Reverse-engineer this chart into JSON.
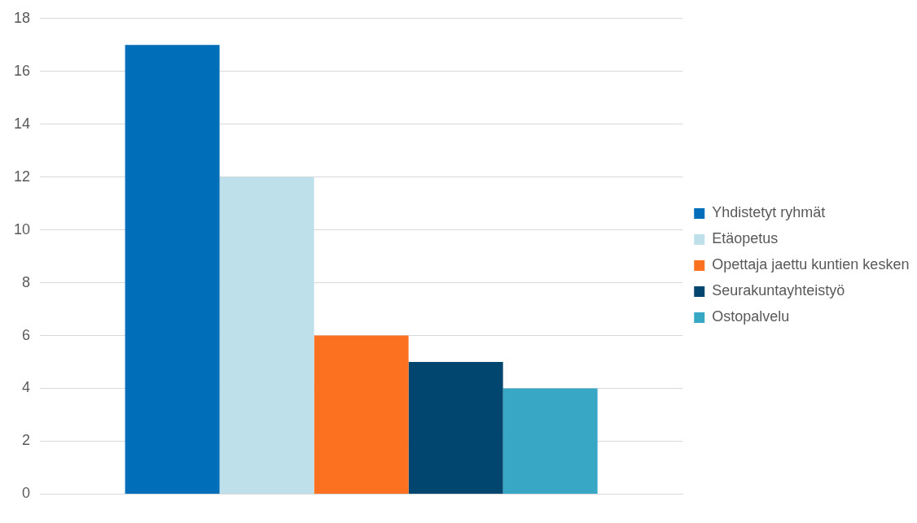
{
  "chart_data": {
    "type": "bar",
    "categories": [
      null
    ],
    "series": [
      {
        "name": "Yhdistetyt ryhmät",
        "color": "#006eb8",
        "values": [
          17
        ]
      },
      {
        "name": "Etäopetus",
        "color": "#bde0ea",
        "values": [
          12
        ]
      },
      {
        "name": "Opettaja jaettu kuntien kesken",
        "color": "#fc7120",
        "values": [
          6
        ]
      },
      {
        "name": "Seurakuntayhteistyö",
        "color": "#00466e",
        "values": [
          5
        ]
      },
      {
        "name": "Ostopalvelu",
        "color": "#38a6c5",
        "values": [
          4
        ]
      }
    ],
    "ylim": [
      0,
      18
    ],
    "yticks": [
      0,
      2,
      4,
      6,
      8,
      10,
      12,
      14,
      16,
      18
    ],
    "grid": "y",
    "legend": "right"
  }
}
